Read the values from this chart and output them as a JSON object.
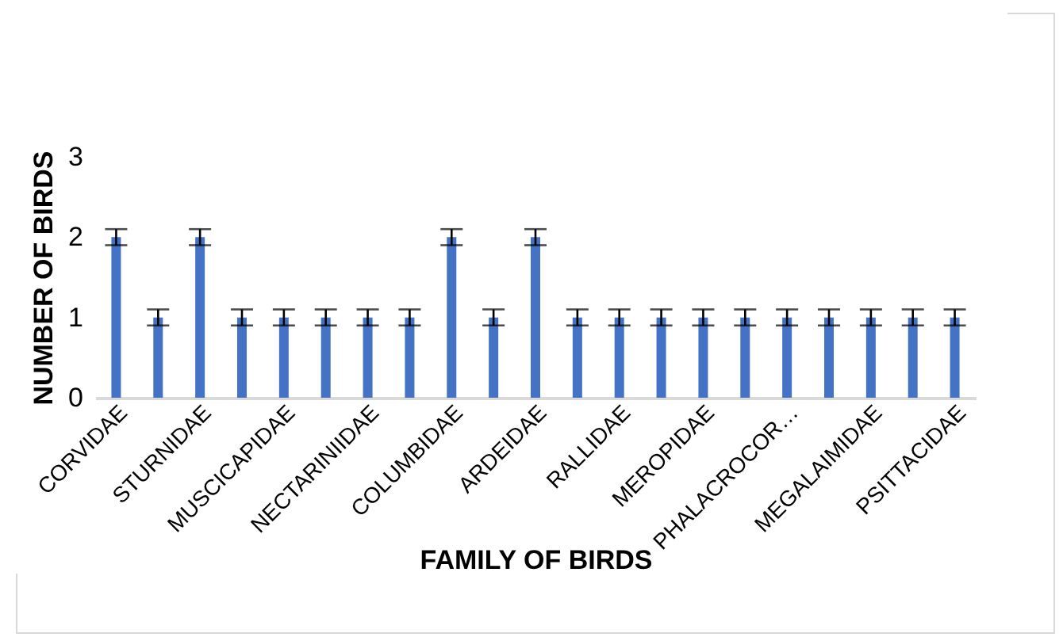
{
  "chart_data": {
    "type": "bar",
    "xlabel": "FAMILY OF BIRDS",
    "ylabel": "NUMBER OF BIRDS",
    "categories": [
      "CORVIDAE",
      null,
      "STURNIDAE",
      null,
      "MUSCICAPIDAE",
      null,
      "NECTARINIIDAE",
      null,
      "COLUMBIDAE",
      null,
      "ARDEIDAE",
      null,
      "RALLIDAE",
      null,
      "MEROPIDAE",
      null,
      "PHALACROCOR…",
      null,
      "MEGALAIMIDAE",
      null,
      "PSITTACIDAE"
    ],
    "values": [
      2,
      1,
      2,
      1,
      1,
      1,
      1,
      1,
      2,
      1,
      2,
      1,
      1,
      1,
      1,
      1,
      1,
      1,
      1,
      1,
      1
    ],
    "errors": [
      0.1,
      0.1,
      0.1,
      0.1,
      0.1,
      0.1,
      0.1,
      0.1,
      0.1,
      0.1,
      0.1,
      0.1,
      0.1,
      0.1,
      0.1,
      0.1,
      0.1,
      0.1,
      0.1,
      0.1,
      0.1
    ],
    "color": "#4472c4",
    "ylim": [
      0,
      3
    ],
    "yticks": [
      0,
      1,
      2,
      3
    ],
    "grid": false
  }
}
